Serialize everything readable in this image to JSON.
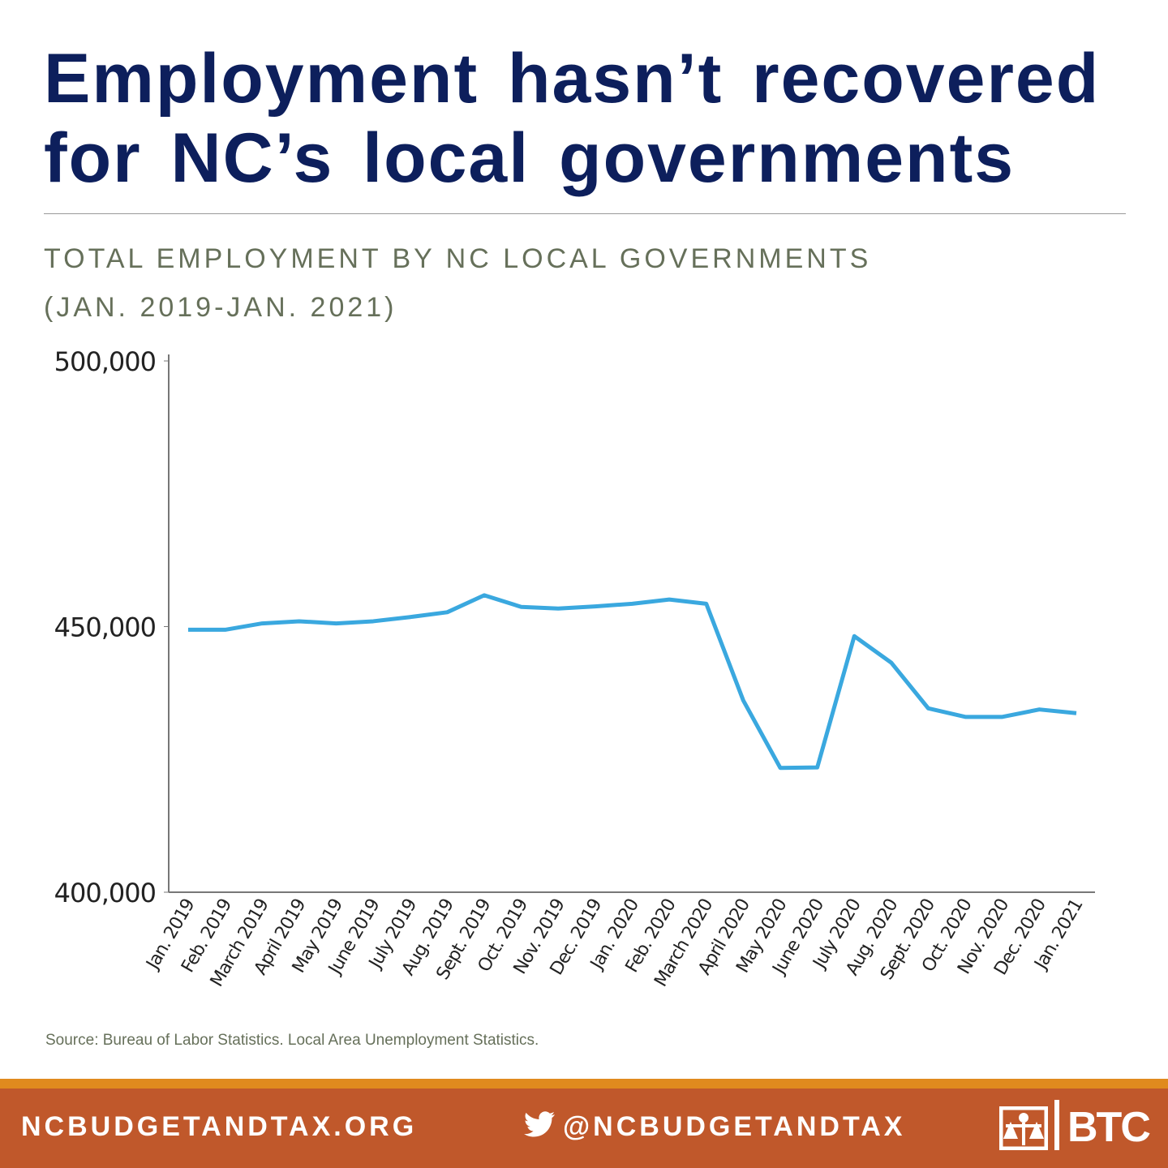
{
  "header": {
    "title": "Employment hasn’t recovered for NC’s local governments"
  },
  "chart_data": {
    "type": "line",
    "title": [
      "TOTAL EMPLOYMENT BY NC LOCAL GOVERNMENTS",
      "(JAN. 2019-JAN. 2021)"
    ],
    "categories": [
      "Jan. 2019",
      "Feb. 2019",
      "March 2019",
      "April 2019",
      "May 2019",
      "June 2019",
      "July 2019",
      "Aug. 2019",
      "Sept. 2019",
      "Oct. 2019",
      "Nov. 2019",
      "Dec. 2019",
      "Jan. 2020",
      "Feb. 2020",
      "March 2020",
      "April 2020",
      "May 2020",
      "June 2020",
      "July 2020",
      "Aug. 2020",
      "Sept. 2020",
      "Oct. 2020",
      "Nov. 2020",
      "Dec. 2020",
      "Jan. 2021"
    ],
    "values": [
      449400,
      449400,
      450600,
      451000,
      450600,
      451000,
      451800,
      452700,
      455900,
      453700,
      453400,
      453800,
      454300,
      455100,
      454300,
      436100,
      423400,
      423500,
      448200,
      443200,
      434600,
      433000,
      433000,
      434400,
      433700
    ],
    "color": "#3aa8df",
    "ylim": [
      400000,
      500000
    ],
    "yticks": [
      {
        "value": 400000,
        "label": "400,000"
      },
      {
        "value": 450000,
        "label": "450,000"
      },
      {
        "value": 500000,
        "label": "500,000"
      }
    ],
    "grid": false,
    "source": "Source: Bureau of Labor Statistics. Local Area Unemployment Statistics."
  },
  "footer": {
    "website": "NCBUDGETANDTAX.ORG",
    "twitter": "@NCBUDGETANDTAX",
    "logo": "BTC"
  }
}
